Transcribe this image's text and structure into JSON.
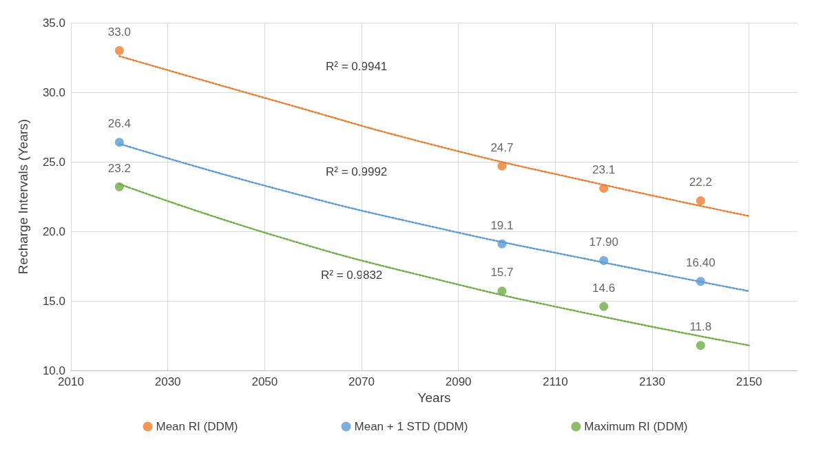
{
  "chart_data": {
    "type": "scatter",
    "xlabel": "Years",
    "ylabel": "Recharge Intervals (Years)",
    "xlim": [
      2010,
      2160
    ],
    "xticks": [
      2010,
      2030,
      2050,
      2070,
      2090,
      2110,
      2130,
      2150
    ],
    "ylim": [
      10,
      35
    ],
    "yticks": [
      {
        "value": 10,
        "label": "10.0"
      },
      {
        "value": 15,
        "label": "15.0"
      },
      {
        "value": 20,
        "label": "20.0"
      },
      {
        "value": 25,
        "label": "25.0"
      },
      {
        "value": 30,
        "label": "30.0"
      },
      {
        "value": 35,
        "label": "35.0"
      }
    ],
    "grid": true,
    "legend": "bottom",
    "marker": "circle",
    "series": [
      {
        "name": "Mean RI (DDM)",
        "color": "#ed7d31",
        "x": [
          2020,
          2099,
          2120,
          2140
        ],
        "values": [
          33.0,
          24.7,
          23.1,
          22.2
        ],
        "value_labels": [
          "33.0",
          "24.7",
          "23.1",
          "22.2"
        ]
      },
      {
        "name": "Mean + 1 STD (DDM)",
        "color": "#5b9bd5",
        "x": [
          2020,
          2099,
          2120,
          2140
        ],
        "values": [
          26.4,
          19.1,
          17.9,
          16.4
        ],
        "value_labels": [
          "26.4",
          "19.1",
          "17.90",
          "16.40"
        ]
      },
      {
        "name": "Maximum RI (DDM)",
        "color": "#70ad47",
        "x": [
          2020,
          2099,
          2120,
          2140
        ],
        "values": [
          23.2,
          15.7,
          14.6,
          11.8
        ],
        "value_labels": [
          "23.2",
          "15.7",
          "14.6",
          "11.8"
        ]
      },
      {
        "type": "line",
        "color": "#ed7d31",
        "line_style": "dotted",
        "marker": "none",
        "x": [
          2020,
          2052,
          2085,
          2118,
          2150
        ],
        "values": [
          32.6,
          29.4,
          26.2,
          23.5,
          21.1
        ]
      },
      {
        "type": "line",
        "color": "#5b9bd5",
        "line_style": "dotted",
        "marker": "none",
        "x": [
          2020,
          2052,
          2085,
          2118,
          2150
        ],
        "values": [
          26.3,
          23.1,
          20.3,
          17.9,
          15.7
        ]
      },
      {
        "type": "line",
        "color": "#70ad47",
        "line_style": "dotted",
        "marker": "none",
        "x": [
          2020,
          2052,
          2085,
          2118,
          2150
        ],
        "values": [
          23.4,
          19.7,
          16.6,
          14.0,
          11.8
        ]
      }
    ],
    "annotations": [
      "R² = 0.9941",
      "R² = 0.9992",
      "R² = 0.9832"
    ]
  }
}
